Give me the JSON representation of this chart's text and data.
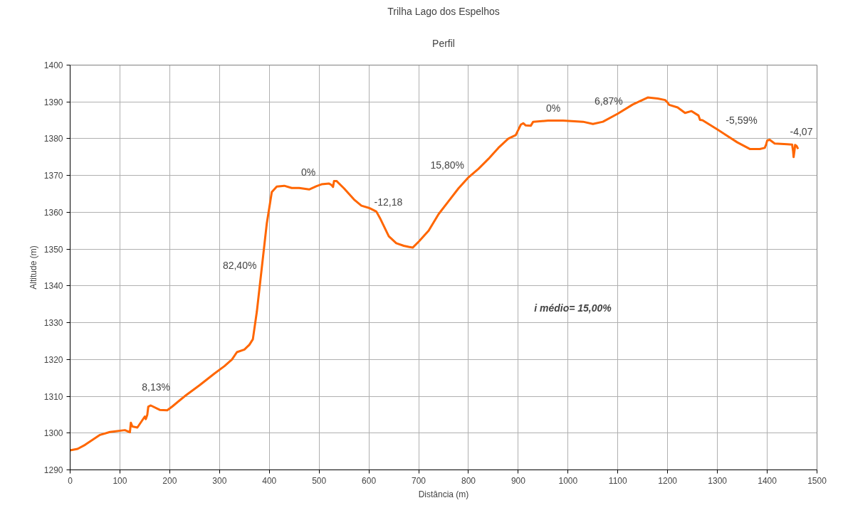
{
  "chart_data": {
    "type": "line",
    "title": "Trilha Lago dos Espelhos",
    "subtitle": "Perfil",
    "xlabel": "Distância (m)",
    "ylabel": "Altitude (m)",
    "x": [
      0,
      15,
      30,
      60,
      80,
      110,
      120,
      122,
      125,
      135,
      150,
      152,
      155,
      157,
      162,
      180,
      195,
      205,
      230,
      260,
      290,
      310,
      325,
      335,
      350,
      360,
      367,
      375,
      385,
      395,
      405,
      415,
      430,
      445,
      460,
      480,
      495,
      505,
      520,
      525,
      528,
      530,
      535,
      550,
      570,
      585,
      600,
      615,
      622,
      640,
      655,
      670,
      680,
      688,
      700,
      720,
      740,
      760,
      780,
      800,
      820,
      840,
      860,
      880,
      895,
      905,
      910,
      915,
      925,
      930,
      960,
      990,
      1030,
      1050,
      1070,
      1100,
      1130,
      1160,
      1180,
      1195,
      1200,
      1203,
      1220,
      1235,
      1248,
      1262,
      1265,
      1270,
      1300,
      1340,
      1365,
      1385,
      1395,
      1398,
      1400,
      1405,
      1415,
      1440,
      1450,
      1452,
      1453,
      1455,
      1456,
      1459,
      1462
    ],
    "series": [
      {
        "color": "#ff6600",
        "values": [
          1295.3,
          1295.7,
          1296.8,
          1299.5,
          1300.3,
          1300.8,
          1300.2,
          1302.8,
          1301.8,
          1301.5,
          1304.5,
          1303.8,
          1305,
          1307.2,
          1307.5,
          1306.3,
          1306.2,
          1307.2,
          1310,
          1313,
          1316.2,
          1318.2,
          1320,
          1322,
          1322.7,
          1324,
          1325.5,
          1333,
          1345,
          1357,
          1365.5,
          1367,
          1367.2,
          1366.6,
          1366.6,
          1366.2,
          1367.1,
          1367.6,
          1367.8,
          1367.4,
          1366.9,
          1368.5,
          1368.5,
          1366.5,
          1363.5,
          1361.8,
          1361.2,
          1360.2,
          1358.5,
          1353.5,
          1351.6,
          1350.9,
          1350.6,
          1350.4,
          1352,
          1355,
          1359.5,
          1363,
          1366.5,
          1369.5,
          1371.8,
          1374.5,
          1377.5,
          1380,
          1381,
          1383.8,
          1384.2,
          1383.6,
          1383.5,
          1384.6,
          1384.9,
          1384.9,
          1384.6,
          1384,
          1384.6,
          1386.8,
          1389.3,
          1391.2,
          1390.9,
          1390.5,
          1389.8,
          1389.2,
          1388.5,
          1387,
          1387.5,
          1386.3,
          1385.1,
          1385,
          1382.5,
          1379,
          1377.2,
          1377.2,
          1377.5,
          1378.5,
          1379.5,
          1379.7,
          1378.7,
          1378.5,
          1378.4,
          1376.6,
          1375,
          1377,
          1378.3,
          1378,
          1377.2
        ]
      }
    ],
    "xlim": [
      0,
      1500
    ],
    "xticks": [
      0,
      100,
      200,
      300,
      400,
      500,
      600,
      700,
      800,
      900,
      1000,
      1100,
      1200,
      1300,
      1400,
      1500
    ],
    "ylim": [
      1290,
      1400
    ],
    "yticks": [
      1290,
      1300,
      1310,
      1320,
      1330,
      1340,
      1350,
      1360,
      1370,
      1380,
      1390,
      1400
    ],
    "grid": true,
    "marker": "none",
    "line_style": "solid",
    "annotations": [
      "8,13%",
      "82,40%",
      "0%",
      "-12,18",
      "15,80%",
      "0%",
      "6,87%",
      "-5,59%",
      "-4,07",
      "i médio= 15,00%"
    ]
  }
}
